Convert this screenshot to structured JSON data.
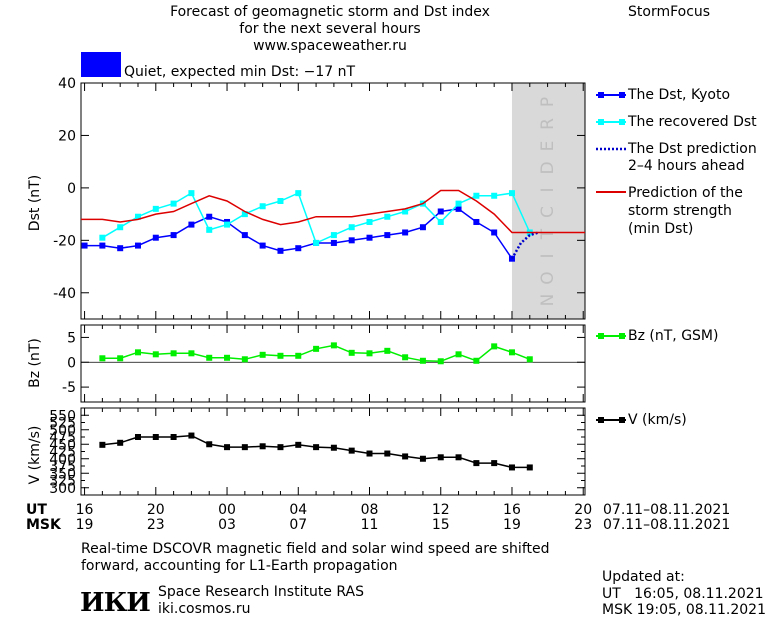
{
  "header": {
    "title_lines": [
      "Forecast of geomagnetic storm and Dst index",
      "for the next several hours",
      "www.spaceweather.ru"
    ],
    "brand": "StormFocus"
  },
  "status": {
    "color": "#0000ff",
    "label": "Quiet, expected min Dst: −17 nT"
  },
  "prediction_band_label": "PREDICTION",
  "footer": {
    "note_lines": [
      "Real-time DSCOVR magnetic field and solar wind speed are shifted",
      "forward, accounting for L1-Earth propagation"
    ],
    "institute": "Space Research Institute RAS",
    "website": "iki.cosmos.ru",
    "logo_text": "ИКИ",
    "updated_label": "Updated at:",
    "updated_ut": "UT   16:05, 08.11.2021",
    "updated_msk": "MSK 19:05, 08.11.2021"
  },
  "time_axis": {
    "ut_label": "UT",
    "msk_label": "MSK",
    "ut_ticks": [
      "16",
      "20",
      "00",
      "04",
      "08",
      "12",
      "16",
      "20"
    ],
    "msk_ticks": [
      "19",
      "23",
      "03",
      "07",
      "11",
      "15",
      "19",
      "23"
    ],
    "ut_range": "07.11–08.11.2021",
    "msk_range": "07.11–08.11.2021",
    "hour_range": [
      -0.2,
      28.1
    ],
    "prediction_start": 24.0
  },
  "chart_data": [
    {
      "type": "line",
      "title": "Dst",
      "ylabel": "Dst (nT)",
      "ylim": [
        -50,
        40
      ],
      "yticks": [
        40,
        20,
        0,
        -20,
        -40
      ],
      "x_unit": "hours since 16 UT, 07.11.2021",
      "series": [
        {
          "name": "The Dst, Kyoto",
          "color": "#0000ff",
          "marker": "square",
          "x": [
            0,
            1,
            2,
            3,
            4,
            5,
            6,
            7,
            8,
            9,
            10,
            11,
            12,
            13,
            14,
            15,
            16,
            17,
            18,
            19,
            20,
            21,
            22,
            23,
            24
          ],
          "y": [
            -22,
            -22,
            -23,
            -22,
            -19,
            -18,
            -14,
            -11,
            -13,
            -18,
            -22,
            -24,
            -23,
            -21,
            -21,
            -20,
            -19,
            -18,
            -17,
            -15,
            -9,
            -8,
            -13,
            -17,
            -27
          ]
        },
        {
          "name": "The recovered Dst",
          "color": "#00ffff",
          "marker": "square",
          "x": [
            1,
            2,
            3,
            4,
            5,
            6,
            7,
            8,
            9,
            10,
            11,
            12,
            13,
            14,
            15,
            16,
            17,
            18,
            19,
            20,
            21,
            22,
            23,
            24,
            25
          ],
          "y": [
            -19,
            -15,
            -11,
            -8,
            -6,
            -2,
            -16,
            -14,
            -10,
            -7,
            -5,
            -2,
            -21,
            -18,
            -15,
            -13,
            -11,
            -9,
            -6,
            -13,
            -6,
            -3,
            -3,
            -2,
            -17
          ]
        },
        {
          "name": "The Dst prediction 2–4 hours ahead",
          "color": "#0000cc",
          "style": "dotted",
          "x": [
            24,
            24.5,
            25,
            25.5
          ],
          "y": [
            -27,
            -21,
            -18,
            -17
          ]
        },
        {
          "name": "Prediction of the storm strength (min Dst)",
          "color": "#dd0000",
          "x": [
            -0.2,
            1,
            2,
            3,
            4,
            5,
            6,
            7,
            8,
            9,
            10,
            11,
            12,
            13,
            14,
            15,
            16,
            17,
            18,
            19,
            20,
            21,
            22,
            23,
            24,
            25,
            28.1
          ],
          "y": [
            -12,
            -12,
            -13,
            -12,
            -10,
            -9,
            -6,
            -3,
            -5,
            -9,
            -12,
            -14,
            -13,
            -11,
            -11,
            -11,
            -10,
            -9,
            -8,
            -6,
            -1,
            -1,
            -5,
            -10,
            -17,
            -17,
            -17
          ]
        }
      ]
    },
    {
      "type": "line",
      "title": "Bz",
      "ylabel": "Bz (nT)",
      "ylim": [
        -8,
        7.5
      ],
      "yticks": [
        5,
        0,
        -5
      ],
      "x_unit": "hours since 16 UT, 07.11.2021",
      "series": [
        {
          "name": "Bz (nT, GSM)",
          "color": "#00ee00",
          "marker": "square",
          "x": [
            1,
            2,
            3,
            4,
            5,
            6,
            7,
            8,
            9,
            10,
            11,
            12,
            13,
            14,
            15,
            16,
            17,
            18,
            19,
            20,
            21,
            22,
            23,
            24,
            25
          ],
          "y": [
            0.8,
            0.8,
            2.0,
            1.6,
            1.8,
            1.8,
            0.9,
            0.9,
            0.6,
            1.5,
            1.3,
            1.3,
            2.7,
            3.4,
            1.9,
            1.8,
            2.3,
            1.0,
            0.3,
            0.2,
            1.6,
            0.3,
            3.2,
            2.0,
            0.6
          ]
        }
      ]
    },
    {
      "type": "line",
      "title": "V",
      "ylabel": "V (km/s)",
      "ylim": [
        275,
        575
      ],
      "yticks": [
        550,
        500,
        450,
        400,
        350,
        300
      ],
      "yticks_minor": [
        525,
        475,
        425,
        375,
        325
      ],
      "x_unit": "hours since 16 UT, 07.11.2021",
      "series": [
        {
          "name": "V (km/s)",
          "color": "#000000",
          "marker": "square",
          "x": [
            1,
            2,
            3,
            4,
            5,
            6,
            7,
            8,
            9,
            10,
            11,
            12,
            13,
            14,
            15,
            16,
            17,
            18,
            19,
            20,
            21,
            22,
            23,
            24,
            25
          ],
          "y": [
            448,
            455,
            475,
            475,
            475,
            480,
            450,
            440,
            440,
            443,
            440,
            448,
            440,
            438,
            428,
            418,
            418,
            408,
            400,
            405,
            405,
            385,
            385,
            370,
            370
          ]
        }
      ]
    }
  ]
}
